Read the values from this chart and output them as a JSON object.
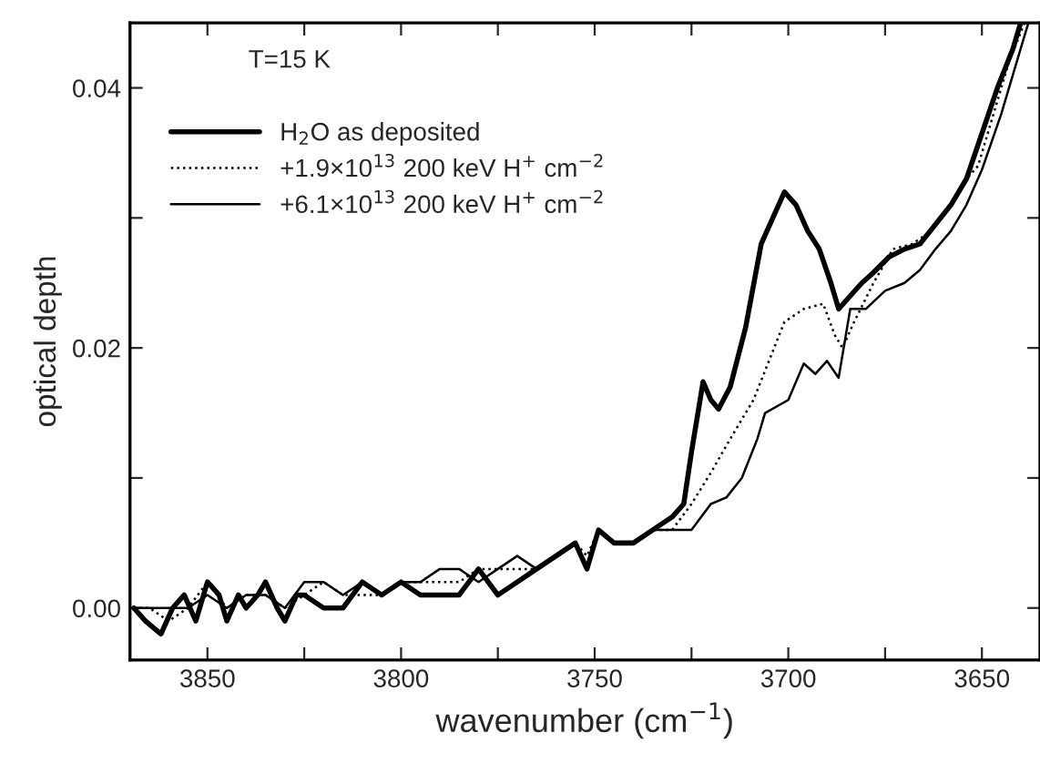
{
  "chart_data": {
    "type": "line",
    "xlabel": "wavenumber (cm$^{−1}$)",
    "ylabel": "optical depth",
    "annotations": [
      "T=15 K"
    ],
    "xlim": [
      3870,
      3635
    ],
    "ylim": [
      -0.004,
      0.045
    ],
    "xticks": [
      3850,
      {
        "value": 3825,
        "label": null
      },
      3800,
      {
        "value": 3775,
        "label": null
      },
      3750,
      {
        "value": 3725,
        "label": null
      },
      3700,
      {
        "value": 3675,
        "label": null
      },
      3650
    ],
    "yticks": [
      {
        "value": 0.0,
        "label": "0.00"
      },
      {
        "value": 0.01,
        "label": null
      },
      {
        "value": 0.02,
        "label": "0.02"
      },
      {
        "value": 0.03,
        "label": null
      },
      {
        "value": 0.04,
        "label": "0.04"
      }
    ],
    "legend": "top left",
    "grid": false,
    "marker": "none",
    "series": [
      {
        "name": "H$_{2}$O as deposited",
        "color": "#000000",
        "line_style": "solid",
        "x": [
          3869,
          3866,
          3862,
          3859,
          3856,
          3853,
          3850,
          3847,
          3845,
          3842,
          3840,
          3837,
          3835,
          3832,
          3830,
          3827,
          3825,
          3820,
          3815,
          3810,
          3805,
          3800,
          3795,
          3790,
          3785,
          3780,
          3775,
          3770,
          3765,
          3760,
          3755,
          3752,
          3749,
          3745,
          3740,
          3735,
          3730,
          3727,
          3725,
          3722,
          3720,
          3718,
          3715,
          3711,
          3707,
          3704,
          3701,
          3698,
          3695,
          3692,
          3689,
          3687,
          3684,
          3681,
          3678,
          3674,
          3670,
          3666,
          3662,
          3658,
          3654,
          3650,
          3646,
          3642,
          3640
        ],
        "values": [
          0.0,
          -0.001,
          -0.002,
          0.0,
          0.001,
          -0.001,
          0.002,
          0.001,
          -0.001,
          0.001,
          0.0,
          0.001,
          0.002,
          0.0,
          -0.001,
          0.001,
          0.001,
          0.0,
          0.0,
          0.002,
          0.001,
          0.002,
          0.001,
          0.001,
          0.001,
          0.003,
          0.001,
          0.002,
          0.003,
          0.004,
          0.005,
          0.003,
          0.006,
          0.005,
          0.005,
          0.006,
          0.007,
          0.008,
          0.012,
          0.0174,
          0.016,
          0.0153,
          0.017,
          0.0216,
          0.028,
          0.03,
          0.032,
          0.031,
          0.029,
          0.0276,
          0.025,
          0.023,
          0.024,
          0.025,
          0.0258,
          0.027,
          0.0276,
          0.028,
          0.0295,
          0.031,
          0.033,
          0.0365,
          0.04,
          0.043,
          0.045
        ]
      },
      {
        "name": "+1.9×10$^{13}$ 200 keV H$^{+}$ cm$^{−2}$",
        "color": "#000000",
        "line_style": "dotted",
        "x": [
          3869,
          3865,
          3860,
          3855,
          3850,
          3845,
          3840,
          3835,
          3830,
          3825,
          3820,
          3815,
          3810,
          3805,
          3800,
          3795,
          3790,
          3785,
          3780,
          3775,
          3770,
          3765,
          3760,
          3755,
          3752,
          3749,
          3745,
          3740,
          3735,
          3730,
          3725,
          3720,
          3715,
          3709,
          3705,
          3701,
          3696,
          3691,
          3688,
          3686,
          3683,
          3678,
          3673,
          3668,
          3663,
          3658,
          3654,
          3651,
          3647,
          3643,
          3639
        ],
        "values": [
          0.0,
          0.0,
          -0.001,
          0.0,
          0.002,
          0.0,
          0.001,
          0.001,
          0.0,
          0.001,
          0.002,
          0.001,
          0.001,
          0.001,
          0.002,
          0.002,
          0.002,
          0.002,
          0.003,
          0.003,
          0.003,
          0.003,
          0.004,
          0.005,
          0.004,
          0.006,
          0.005,
          0.005,
          0.006,
          0.006,
          0.008,
          0.0104,
          0.013,
          0.016,
          0.019,
          0.022,
          0.023,
          0.0234,
          0.021,
          0.02,
          0.022,
          0.025,
          0.0276,
          0.028,
          0.029,
          0.031,
          0.033,
          0.034,
          0.038,
          0.042,
          0.045
        ]
      },
      {
        "name": "+6.1×10$^{13}$ 200 keV H$^{+}$ cm$^{−2}$",
        "color": "#000000",
        "line_style": "solid",
        "x": [
          3869,
          3865,
          3860,
          3855,
          3850,
          3845,
          3840,
          3835,
          3830,
          3825,
          3820,
          3815,
          3810,
          3805,
          3800,
          3795,
          3790,
          3785,
          3780,
          3775,
          3770,
          3765,
          3760,
          3755,
          3752,
          3749,
          3745,
          3740,
          3735,
          3730,
          3725,
          3720,
          3716,
          3712,
          3708,
          3706,
          3700,
          3696,
          3693,
          3690,
          3687,
          3684,
          3680,
          3675,
          3670,
          3666,
          3662,
          3658,
          3654,
          3650,
          3645,
          3641,
          3638
        ],
        "values": [
          0.0,
          0.0,
          0.0,
          0.0,
          0.001,
          0.0,
          0.001,
          0.001,
          0.0,
          0.002,
          0.002,
          0.001,
          0.002,
          0.001,
          0.002,
          0.002,
          0.003,
          0.003,
          0.002,
          0.003,
          0.004,
          0.003,
          0.004,
          0.005,
          0.003,
          0.006,
          0.005,
          0.005,
          0.006,
          0.006,
          0.006,
          0.008,
          0.0085,
          0.01,
          0.013,
          0.015,
          0.016,
          0.0188,
          0.018,
          0.019,
          0.0177,
          0.023,
          0.023,
          0.0244,
          0.025,
          0.026,
          0.0276,
          0.029,
          0.031,
          0.0337,
          0.038,
          0.042,
          0.045
        ]
      }
    ]
  }
}
